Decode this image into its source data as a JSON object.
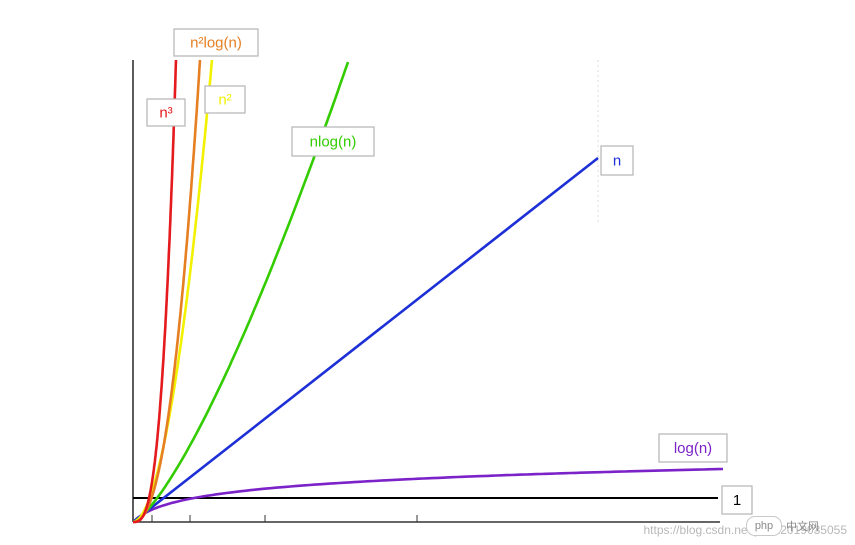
{
  "chart_data": {
    "type": "line",
    "title": "",
    "xlabel": "",
    "ylabel": "",
    "xlim": [
      0,
      10
    ],
    "ylim": [
      0,
      10
    ],
    "grid": false,
    "legend": "inline",
    "series": [
      {
        "name": "n³",
        "color": "#e41a1c",
        "expr": "n^3"
      },
      {
        "name": "n²log(n)",
        "color": "#e67e22",
        "expr": "n^2 log n"
      },
      {
        "name": "n²",
        "color": "#f2f200",
        "expr": "n^2"
      },
      {
        "name": "nlog(n)",
        "color": "#33cc00",
        "expr": "n log n"
      },
      {
        "name": "n",
        "color": "#1d2fd6",
        "expr": "n"
      },
      {
        "name": "log(n)",
        "color": "#7b22c8",
        "expr": "log n"
      },
      {
        "name": "1",
        "color": "#000000",
        "expr": "1"
      }
    ]
  },
  "watermark": {
    "url": "https://blog.csdn.net/yuan2019035055",
    "logo_pill": "php",
    "logo_text": "中文网"
  }
}
